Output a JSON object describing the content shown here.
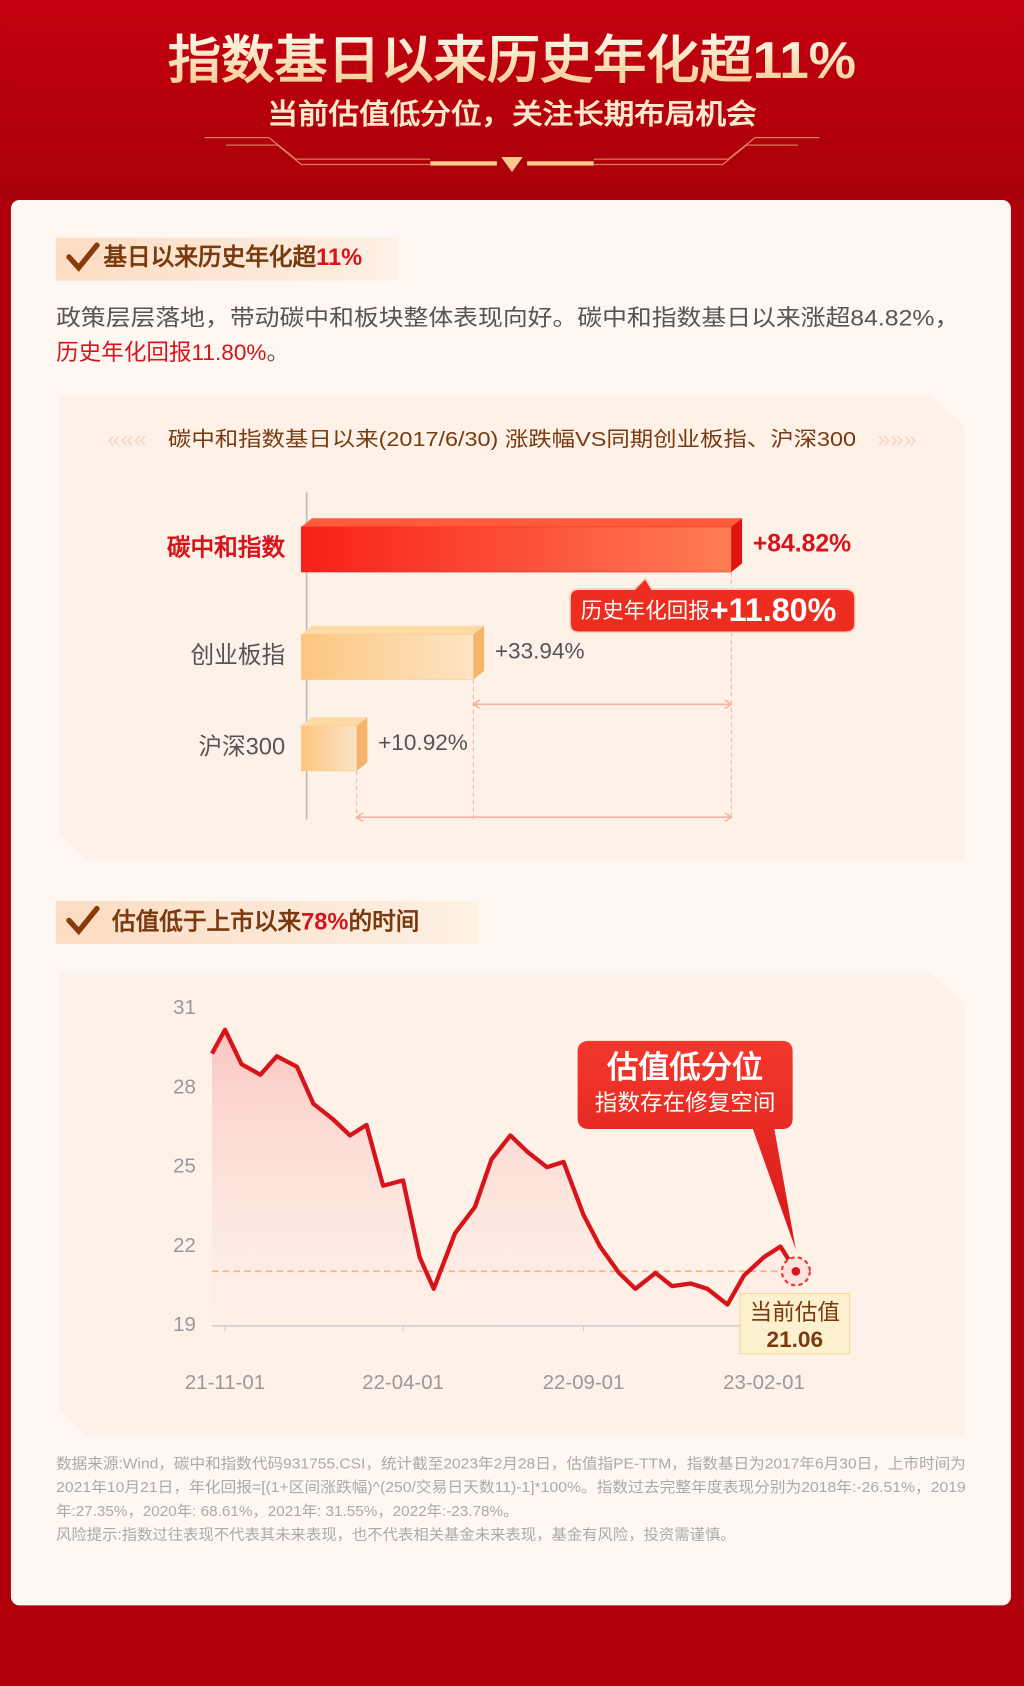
{
  "header": {
    "title": "指数基日以来历史年化超11%",
    "subtitle": "当前估值低分位，关注长期布局机会"
  },
  "section1": {
    "heading": [
      "基日以来历史年化超",
      "11%"
    ],
    "paragraph": [
      "政策层层落地，带动碳中和板块整体表现向好。碳中和指数基日以来涨超84.82%，",
      "历史年化回报11.80%",
      "。"
    ]
  },
  "section2": {
    "heading": [
      "估值低于上市以来",
      "78%",
      "的时间"
    ]
  },
  "chart_data": [
    {
      "type": "bar",
      "orientation": "horizontal",
      "title": "碳中和指数基日以来(2017/6/30) 涨跌幅VS同期创业板指、沪深300",
      "categories": [
        "碳中和指数",
        "创业板指",
        "沪深300"
      ],
      "values": [
        84.82,
        33.94,
        10.92
      ],
      "value_labels": [
        "+84.82%",
        "+33.94%",
        "+10.92%"
      ],
      "colors": [
        "#f2271c",
        "#fbc987",
        "#fbc987"
      ],
      "highlight": 0,
      "annotation": {
        "text": "历史年化回报",
        "highlight": "+11.80%"
      }
    },
    {
      "type": "line",
      "x": [
        "21-10-21",
        "21-11-01",
        "21-11-15",
        "21-12-01",
        "21-12-15",
        "22-01-01",
        "22-01-15",
        "22-02-01",
        "22-02-15",
        "22-03-01",
        "22-03-15",
        "22-04-01",
        "22-04-15",
        "22-04-27",
        "22-05-15",
        "22-06-01",
        "22-06-15",
        "22-07-01",
        "22-07-15",
        "22-08-01",
        "22-08-15",
        "22-09-01",
        "22-09-15",
        "22-10-01",
        "22-10-15",
        "22-11-01",
        "22-11-15",
        "22-12-01",
        "22-12-15",
        "23-01-01",
        "23-01-15",
        "23-02-01",
        "23-02-15",
        "23-02-28"
      ],
      "values": [
        29.3,
        30.2,
        28.9,
        28.5,
        29.2,
        28.8,
        27.4,
        26.8,
        26.2,
        26.6,
        24.3,
        24.5,
        21.6,
        20.4,
        22.5,
        23.5,
        25.3,
        26.2,
        25.6,
        25.0,
        25.2,
        23.2,
        22.0,
        21.0,
        20.4,
        21.0,
        20.5,
        20.6,
        20.4,
        19.8,
        20.9,
        21.6,
        22.0,
        21.06
      ],
      "color": "#d7141a",
      "xlim": [
        "21-10-21",
        "23-02-28"
      ],
      "xticks": [
        "21-11-01",
        "22-04-01",
        "22-09-01",
        "23-02-01"
      ],
      "ylim": [
        19,
        31
      ],
      "yticks": [
        19,
        22,
        25,
        28,
        31
      ],
      "reference": {
        "label": "当前估值",
        "value": 21.06
      },
      "callout": {
        "title": "估值低分位",
        "text": "指数存在修复空间"
      }
    }
  ],
  "footnote": [
    "数据来源:Wind，碳中和指数代码931755.CSI，统计截至2023年2月28日，估值指PE-TTM，指数基日为2017年6月30日，上市时间为",
    "2021年10月21日，年化回报=[(1+区间涨跌幅)^(250/交易日天数11)-1]*100%。指数过去完整年度表现分别为2018年:-26.51%，2019",
    "年:27.35%，2020年: 68.61%，2021年: 31.55%，2022年:-23.78%。",
    "风险提示:指数过往表现不代表其未来表现，也不代表相关基金未来表现，基金有风险，投资需谨慎。"
  ]
}
